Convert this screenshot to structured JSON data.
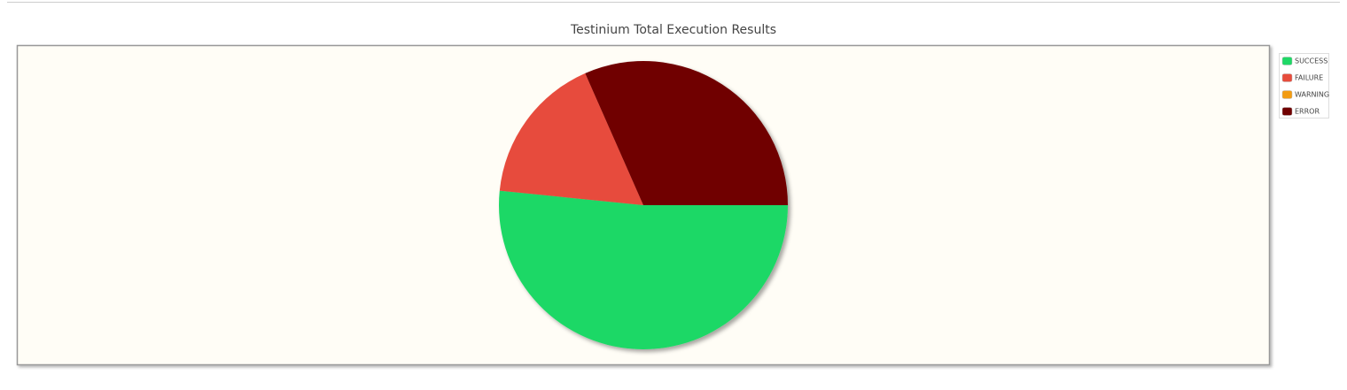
{
  "chart_data": {
    "type": "pie",
    "title": "Testinium Total Execution Results",
    "categories": [
      "SUCCESS",
      "FAILURE",
      "WARNING",
      "ERROR"
    ],
    "values": [
      51.6,
      16.8,
      0,
      31.6
    ],
    "colors": [
      "#1fd866",
      "#e74c3c",
      "#f39c12",
      "#700000"
    ],
    "legend": "right"
  }
}
